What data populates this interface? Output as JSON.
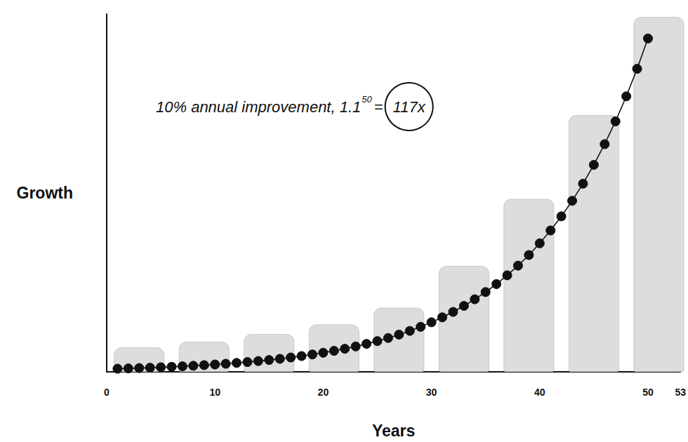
{
  "chart_data": {
    "type": "line",
    "x_label": "Years",
    "y_label": "Growth",
    "annotation": {
      "base": "10% annual improvement, 1.1",
      "exponent": "50",
      "equals": "=",
      "result": "117x"
    },
    "xlim": [
      0,
      53
    ],
    "xticks": [
      0,
      10,
      20,
      30,
      40,
      50
    ],
    "ylim": [
      0,
      126
    ],
    "tick_labels": "x",
    "grid": false,
    "series": [
      {
        "type": "bar",
        "color": "#dddddd",
        "x": [
          3,
          9,
          15,
          21,
          27,
          33,
          39,
          45,
          51
        ],
        "values": [
          8.6,
          10.6,
          13.3,
          16.7,
          22.6,
          37.3,
          60.9,
          90.4,
          125
        ]
      },
      {
        "type": "line",
        "color": "#111111",
        "marker": "circle",
        "line_style": "solid",
        "x": [
          1,
          2,
          3,
          4,
          5,
          6,
          7,
          8,
          9,
          10,
          11,
          12,
          13,
          14,
          15,
          16,
          17,
          18,
          19,
          20,
          21,
          22,
          23,
          24,
          25,
          26,
          27,
          28,
          29,
          30,
          31,
          32,
          33,
          34,
          35,
          36,
          37,
          38,
          39,
          40,
          41,
          42,
          43,
          44,
          45,
          46,
          47,
          48,
          49,
          50
        ],
        "values": [
          1.1,
          1.21,
          1.33,
          1.46,
          1.61,
          1.77,
          1.95,
          2.14,
          2.36,
          2.59,
          2.85,
          3.14,
          3.45,
          3.8,
          4.18,
          4.59,
          5.05,
          5.56,
          6.12,
          6.73,
          7.4,
          8.14,
          8.95,
          9.85,
          10.83,
          11.92,
          13.11,
          14.42,
          15.86,
          17.45,
          19.19,
          21.11,
          23.23,
          25.55,
          28.1,
          30.91,
          34.0,
          37.4,
          41.14,
          45.26,
          49.79,
          54.76,
          60.24,
          66.26,
          72.89,
          80.18,
          88.2,
          97.02,
          106.72,
          117.39
        ]
      }
    ]
  }
}
